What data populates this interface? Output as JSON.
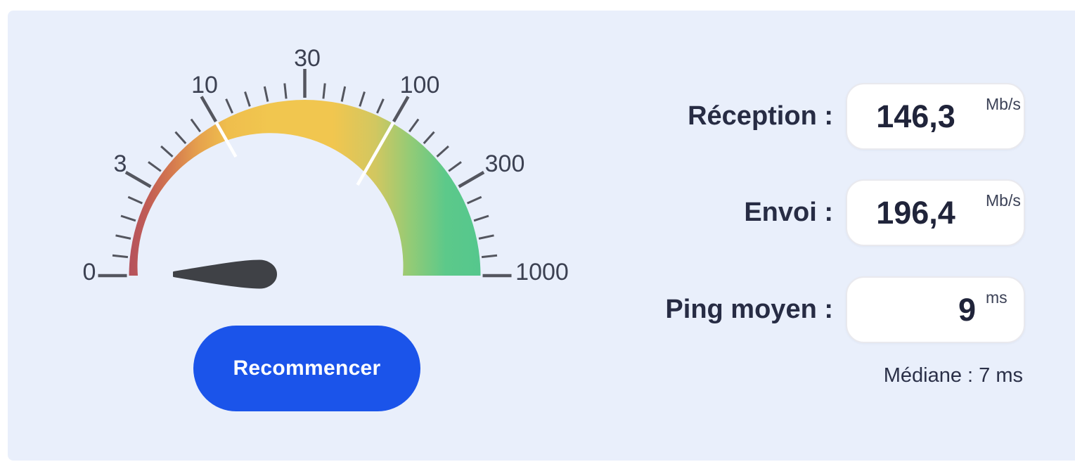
{
  "gauge": {
    "scale_labels": [
      "0",
      "3",
      "10",
      "30",
      "100",
      "300",
      "1000"
    ],
    "colors": {
      "low": "#b4525d",
      "mid_low": "#e0934f",
      "mid": "#f1c64f",
      "high": "#55c78d",
      "needle": "#3f4146",
      "tick": "#54565f"
    }
  },
  "button": {
    "label": "Recommencer"
  },
  "results": [
    {
      "label": "Réception :",
      "value": "146,3",
      "unit": "Mb/s"
    },
    {
      "label": "Envoi :",
      "value": "196,4",
      "unit": "Mb/s"
    },
    {
      "label": "Ping moyen :",
      "value": "9",
      "unit": "ms",
      "note": "Médiane : 7 ms"
    }
  ],
  "colors": {
    "panel_background": "#e9effb",
    "page_background": "#ffffff",
    "accent_button": "#1b54ea",
    "text_dark": "#272c44",
    "card_background": "#ffffff"
  }
}
